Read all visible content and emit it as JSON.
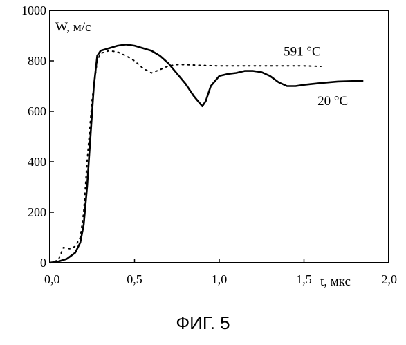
{
  "chart_data": {
    "type": "line",
    "title": "",
    "ylabel": "W, м/с",
    "xlabel": "t, мкс",
    "xlim": [
      0.0,
      2.0
    ],
    "ylim": [
      0,
      1000
    ],
    "x_ticks": [
      0.0,
      0.5,
      1.0,
      1.5,
      2.0
    ],
    "x_tick_labels": [
      "0,0",
      "0,5",
      "1,0",
      "1,5",
      "2,0"
    ],
    "y_ticks": [
      0,
      200,
      400,
      600,
      800,
      1000
    ],
    "y_tick_labels": [
      "0",
      "200",
      "400",
      "600",
      "800",
      "1000"
    ],
    "grid": false,
    "series": [
      {
        "name": "20 °C",
        "style": "solid",
        "color": "#000000",
        "points": [
          [
            0.0,
            0
          ],
          [
            0.05,
            5
          ],
          [
            0.1,
            15
          ],
          [
            0.15,
            40
          ],
          [
            0.18,
            80
          ],
          [
            0.2,
            150
          ],
          [
            0.22,
            300
          ],
          [
            0.24,
            500
          ],
          [
            0.26,
            700
          ],
          [
            0.28,
            820
          ],
          [
            0.3,
            840
          ],
          [
            0.35,
            850
          ],
          [
            0.4,
            860
          ],
          [
            0.45,
            865
          ],
          [
            0.5,
            860
          ],
          [
            0.55,
            850
          ],
          [
            0.6,
            840
          ],
          [
            0.65,
            820
          ],
          [
            0.7,
            790
          ],
          [
            0.75,
            750
          ],
          [
            0.8,
            710
          ],
          [
            0.85,
            660
          ],
          [
            0.9,
            620
          ],
          [
            0.92,
            640
          ],
          [
            0.95,
            700
          ],
          [
            1.0,
            740
          ],
          [
            1.05,
            748
          ],
          [
            1.1,
            752
          ],
          [
            1.15,
            760
          ],
          [
            1.2,
            760
          ],
          [
            1.25,
            755
          ],
          [
            1.3,
            740
          ],
          [
            1.35,
            715
          ],
          [
            1.4,
            700
          ],
          [
            1.45,
            700
          ],
          [
            1.5,
            705
          ],
          [
            1.6,
            712
          ],
          [
            1.7,
            718
          ],
          [
            1.8,
            720
          ],
          [
            1.85,
            720
          ]
        ]
      },
      {
        "name": "591 °C",
        "style": "dotted",
        "color": "#000000",
        "points": [
          [
            0.0,
            0
          ],
          [
            0.05,
            10
          ],
          [
            0.08,
            60
          ],
          [
            0.12,
            55
          ],
          [
            0.15,
            65
          ],
          [
            0.18,
            100
          ],
          [
            0.2,
            200
          ],
          [
            0.22,
            400
          ],
          [
            0.25,
            650
          ],
          [
            0.28,
            800
          ],
          [
            0.3,
            830
          ],
          [
            0.35,
            840
          ],
          [
            0.4,
            835
          ],
          [
            0.45,
            820
          ],
          [
            0.5,
            800
          ],
          [
            0.55,
            770
          ],
          [
            0.6,
            752
          ],
          [
            0.65,
            765
          ],
          [
            0.7,
            780
          ],
          [
            0.75,
            785
          ],
          [
            0.8,
            785
          ],
          [
            0.9,
            782
          ],
          [
            1.0,
            780
          ],
          [
            1.1,
            780
          ],
          [
            1.2,
            780
          ],
          [
            1.3,
            780
          ],
          [
            1.4,
            780
          ],
          [
            1.5,
            780
          ],
          [
            1.6,
            778
          ]
        ]
      }
    ],
    "annotations": [
      {
        "text": "591 °C",
        "x": 1.38,
        "y": 820
      },
      {
        "text": "20 °C",
        "x": 1.58,
        "y": 625
      }
    ]
  },
  "figure": {
    "caption": "ФИГ. 5"
  }
}
